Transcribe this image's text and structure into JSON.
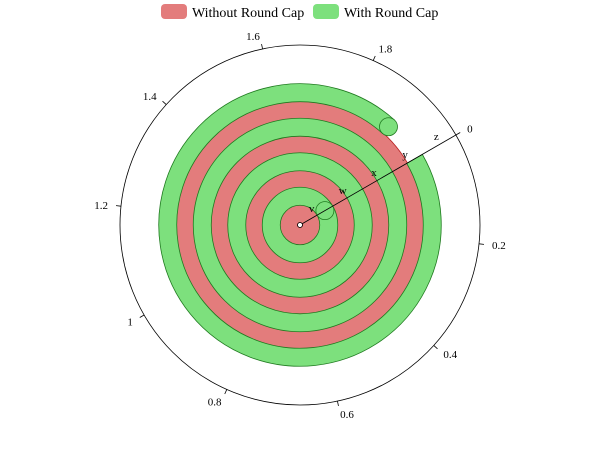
{
  "chart_data": {
    "type": "polar-bar",
    "title": "",
    "legend": {
      "position": "top-center"
    },
    "colors": {
      "without": "#e37c7c",
      "without_stroke": "#b82222",
      "with": "#7de07d",
      "with_stroke": "#1f7a1f"
    },
    "angle_axis": {
      "min": 0,
      "max": 2,
      "start_angle_deg": 30,
      "clockwise": true,
      "tick_labels": [
        "0",
        "0.2",
        "0.4",
        "0.6",
        "0.8",
        "1",
        "1.2",
        "1.4",
        "1.6",
        "1.8"
      ],
      "tick_values": [
        0,
        0.2,
        0.4,
        0.6,
        0.8,
        1.0,
        1.2,
        1.4,
        1.6,
        1.8
      ]
    },
    "radius_axis": {
      "categories": [
        "v",
        "w",
        "x",
        "y",
        "z"
      ]
    },
    "series": [
      {
        "name": "Without Round Cap",
        "key": "without",
        "round_cap": false,
        "values": [
          2.0,
          4.0,
          6.0,
          8.0
        ]
      },
      {
        "name": "With Round Cap",
        "key": "with",
        "round_cap": true,
        "values": [
          1.8,
          3.9,
          5.9,
          7.9
        ]
      }
    ]
  }
}
